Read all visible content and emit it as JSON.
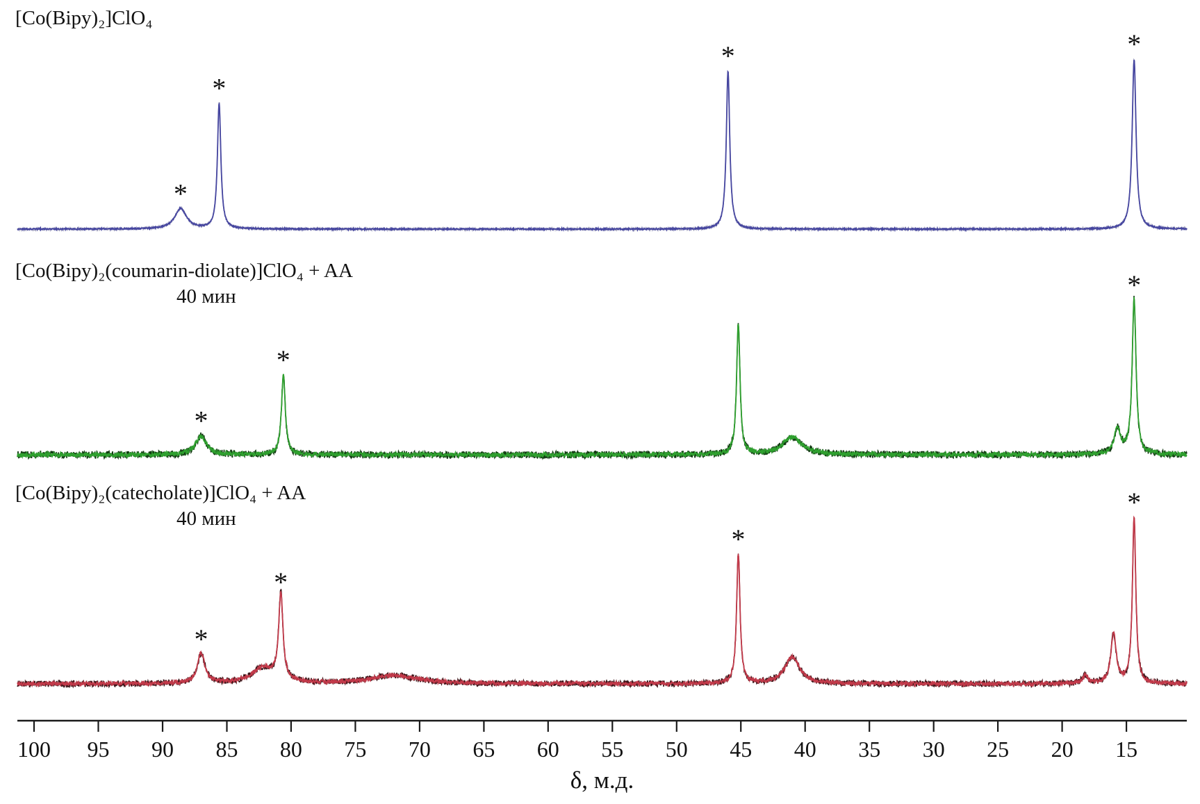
{
  "figure": {
    "background": "#ffffff",
    "text_color": "#111111"
  },
  "chart_data": {
    "type": "line",
    "title": "",
    "xlabel": "δ, м.д.",
    "ylabel": "",
    "legend": "none",
    "grid": false,
    "peak_marker": "*",
    "x_axis": {
      "min": 10.3,
      "max": 101.3,
      "reversed": true,
      "ticks": [
        100,
        95,
        90,
        85,
        80,
        75,
        70,
        65,
        60,
        55,
        50,
        45,
        40,
        35,
        30,
        25,
        20,
        15
      ]
    },
    "spectra": [
      {
        "label": "[Co(Bipy)₂]ClO₄",
        "sublabel": "",
        "color": "#4646a0",
        "fuzz_color": "#a2a2bc",
        "noise": 1.0,
        "peaks": [
          {
            "ppm": 88.6,
            "rel_height": 0.12,
            "width_ppm": 0.55,
            "starred": true
          },
          {
            "ppm": 85.6,
            "rel_height": 0.74,
            "width_ppm": 0.16,
            "starred": true
          },
          {
            "ppm": 46.0,
            "rel_height": 0.93,
            "width_ppm": 0.16,
            "starred": true
          },
          {
            "ppm": 14.4,
            "rel_height": 1.0,
            "width_ppm": 0.18,
            "starred": true
          }
        ]
      },
      {
        "label": "[Co(Bipy)₂(coumarin-diolate)]ClO₄ + AA",
        "sublabel": "40 мин",
        "color": "#2fa02f",
        "fuzz_color": "#123a12",
        "noise": 3.2,
        "peaks": [
          {
            "ppm": 87.0,
            "rel_height": 0.12,
            "width_ppm": 0.5,
            "starred": true
          },
          {
            "ppm": 80.6,
            "rel_height": 0.5,
            "width_ppm": 0.18,
            "starred": true
          },
          {
            "ppm": 45.2,
            "rel_height": 0.82,
            "width_ppm": 0.16,
            "starred": false
          },
          {
            "ppm": 41.0,
            "rel_height": 0.11,
            "width_ppm": 0.9,
            "starred": false
          },
          {
            "ppm": 15.7,
            "rel_height": 0.16,
            "width_ppm": 0.3,
            "starred": false
          },
          {
            "ppm": 14.4,
            "rel_height": 0.97,
            "width_ppm": 0.18,
            "starred": true
          }
        ]
      },
      {
        "label": "[Co(Bipy)₂(catecholate)]ClO₄ + AA",
        "sublabel": "40 мин",
        "color": "#c23a4a",
        "fuzz_color": "#3c1418",
        "noise": 2.8,
        "peaks": [
          {
            "ppm": 87.0,
            "rel_height": 0.18,
            "width_ppm": 0.35,
            "starred": true
          },
          {
            "ppm": 82.2,
            "rel_height": 0.09,
            "width_ppm": 1.1,
            "starred": false
          },
          {
            "ppm": 80.8,
            "rel_height": 0.52,
            "width_ppm": 0.2,
            "starred": true
          },
          {
            "ppm": 72.0,
            "rel_height": 0.05,
            "width_ppm": 2.2,
            "starred": false
          },
          {
            "ppm": 45.2,
            "rel_height": 0.78,
            "width_ppm": 0.16,
            "starred": true
          },
          {
            "ppm": 41.0,
            "rel_height": 0.16,
            "width_ppm": 0.7,
            "starred": false
          },
          {
            "ppm": 18.2,
            "rel_height": 0.05,
            "width_ppm": 0.25,
            "starred": false
          },
          {
            "ppm": 16.0,
            "rel_height": 0.3,
            "width_ppm": 0.25,
            "starred": false
          },
          {
            "ppm": 14.4,
            "rel_height": 1.0,
            "width_ppm": 0.16,
            "starred": true
          }
        ]
      }
    ]
  }
}
